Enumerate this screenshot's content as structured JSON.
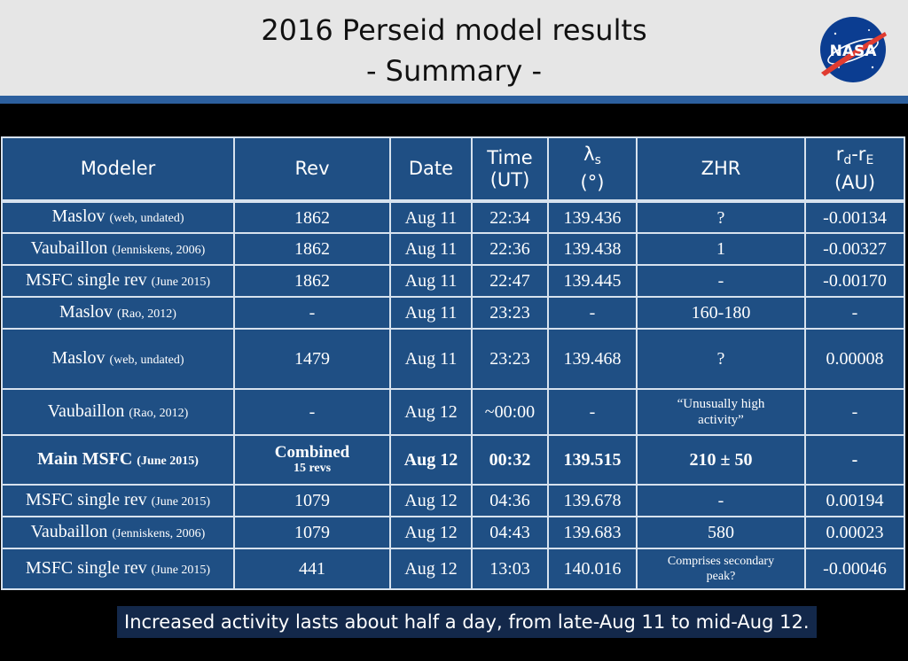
{
  "header": {
    "title_line1": "2016 Perseid model results",
    "title_line2": "- Summary -",
    "logo_text": "NASA",
    "brand_color": "#0b3d91",
    "stripe_color": "#2c5f9e"
  },
  "table": {
    "columns": {
      "modeler": "Modeler",
      "rev": "Rev",
      "date": "Date",
      "time_l1": "Time",
      "time_l2": "(UT)",
      "lambda_symbol": "λ",
      "lambda_sub": "s",
      "lambda_unit": "(°)",
      "zhr": "ZHR",
      "rd_r": "r",
      "rd_d": "d",
      "rd_mid": "-r",
      "rd_e": "E",
      "rd_unit": "(AU)"
    },
    "rows": [
      {
        "name": "Maslov",
        "src": "(web, undated)",
        "rev": "1862",
        "date": "Aug 11",
        "time": "22:34",
        "lambda": "139.436",
        "zhr": "?",
        "rd": "-0.00134"
      },
      {
        "name": "Vaubaillon",
        "src": "(Jenniskens, 2006)",
        "rev": "1862",
        "date": "Aug 11",
        "time": "22:36",
        "lambda": "139.438",
        "zhr": "1",
        "rd": "-0.00327"
      },
      {
        "name": "MSFC single rev",
        "src": "(June 2015)",
        "rev": "1862",
        "date": "Aug 11",
        "time": "22:47",
        "lambda": "139.445",
        "zhr": "-",
        "rd": "-0.00170"
      },
      {
        "name": "Maslov",
        "src": "(Rao, 2012)",
        "rev": "-",
        "date": "Aug 11",
        "time": "23:23",
        "lambda": "-",
        "zhr": "160-180",
        "rd": "-"
      },
      {
        "name": "Maslov",
        "src": "(web, undated)",
        "rev": "1479",
        "date": "Aug 11",
        "time": "23:23",
        "lambda": "139.468",
        "zhr": "?",
        "rd": "0.00008"
      },
      {
        "name": "Vaubaillon",
        "src": "(Rao, 2012)",
        "rev": "-",
        "date": "Aug 12",
        "time": "~00:00",
        "lambda": "-",
        "zhr": "“Unusually high activity”",
        "rd": "-"
      },
      {
        "name": "Main MSFC",
        "src": "(June 2015)",
        "rev": "Combined",
        "rev_sub": "15 revs",
        "date": "Aug 12",
        "time": "00:32",
        "lambda": "139.515",
        "zhr": "210 ± 50",
        "rd": "-"
      },
      {
        "name": "MSFC single rev",
        "src": "(June 2015)",
        "rev": "1079",
        "date": "Aug 12",
        "time": "04:36",
        "lambda": "139.678",
        "zhr": "-",
        "rd": "0.00194"
      },
      {
        "name": "Vaubaillon",
        "src": "(Jenniskens, 2006)",
        "rev": "1079",
        "date": "Aug 12",
        "time": "04:43",
        "lambda": "139.683",
        "zhr": "580",
        "rd": "0.00023"
      },
      {
        "name": "MSFC single rev",
        "src": "(June 2015)",
        "rev": "441",
        "date": "Aug 12",
        "time": "13:03",
        "lambda": "140.016",
        "zhr": "Comprises secondary peak?",
        "rd": "-0.00046"
      }
    ],
    "cell_color": "#1f4f84",
    "border_color": "#d7e2ee"
  },
  "caption": "Increased activity lasts about half a day, from late-Aug 11 to mid-Aug 12."
}
